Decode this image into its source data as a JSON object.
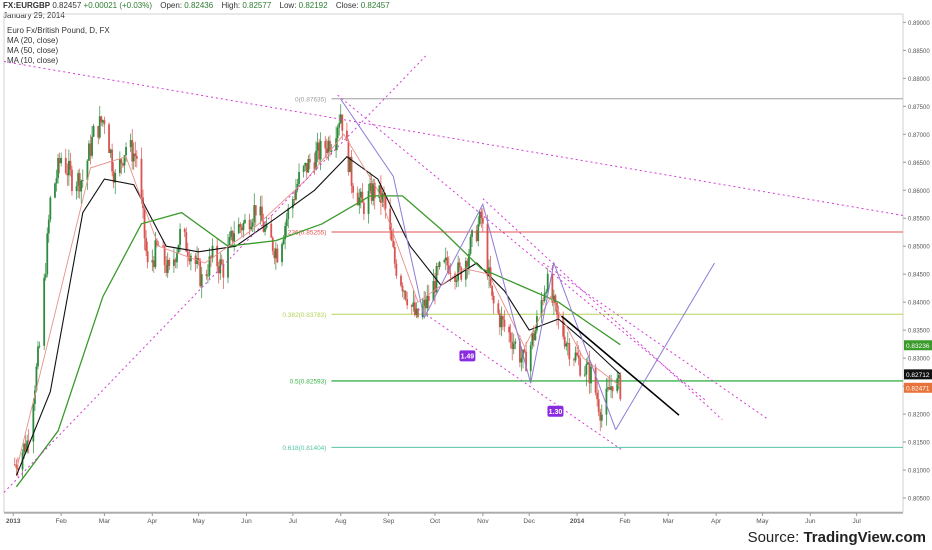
{
  "header": {
    "symbol": "FX:EURGBP",
    "last": "0.82457",
    "change": "+0.00021 (+0.03%)",
    "open_label": "Open:",
    "open": "0.82436",
    "high_label": "High:",
    "high": "0.82577",
    "low_label": "Low:",
    "low": "0.82192",
    "close_label": "Close:",
    "close": "0.82457",
    "date": "January 29, 2014"
  },
  "legend": {
    "title": "Euro Fx/British Pound, D, FX",
    "ma20": "MA (20, close)",
    "ma50": "MA (50, close)",
    "ma10": "MA (10, close)"
  },
  "source": {
    "prefix": "Source:",
    "brand": "TradingView.com"
  },
  "colors": {
    "up": "#2e8b3e",
    "down": "#d9534f",
    "trendline": "#d63ad6",
    "ma20": "#111111",
    "ma50": "#3a9a2a",
    "ma10": "#e8908a",
    "fib_0": "#9e9e9e",
    "fib_236": "#e05050",
    "fib_382": "#b5d35a",
    "fib_5": "#3cb44b",
    "fib_618": "#56c3a7"
  },
  "chart_data": {
    "type": "candlestick",
    "x_tick_labels": [
      "2013",
      "Feb",
      "Mar",
      "Apr",
      "May",
      "Jun",
      "Jul",
      "Aug",
      "Sep",
      "Oct",
      "Nov",
      "Dec",
      "2014",
      "Feb",
      "Mar",
      "Apr",
      "May",
      "Jun",
      "Jul"
    ],
    "ylim": [
      0.8025,
      0.8915
    ],
    "y_ticks": [
      "0.89000",
      "0.88500",
      "0.88000",
      "0.87500",
      "0.87000",
      "0.86500",
      "0.86000",
      "0.85500",
      "0.85000",
      "0.84500",
      "0.84000",
      "0.83500",
      "0.83000",
      "0.82500",
      "0.82000",
      "0.81500",
      "0.81000",
      "0.80500"
    ],
    "price_badges": [
      {
        "name": "ma50",
        "value": 0.8323,
        "label": "0.83236"
      },
      {
        "name": "ma20",
        "value": 0.8271,
        "label": "0.82712"
      },
      {
        "name": "last",
        "value": 0.8247,
        "label": "0.82471"
      }
    ],
    "fib_levels": [
      {
        "key": "fib_0",
        "label": "0(0.87635)",
        "value": 0.87635
      },
      {
        "key": "fib_236",
        "label": ".236(0.85255)",
        "value": 0.85255
      },
      {
        "key": "fib_382",
        "label": "0.382(0.83783)",
        "value": 0.83783
      },
      {
        "key": "fib_5",
        "label": "0.5(0.82593)",
        "value": 0.82593
      },
      {
        "key": "fib_618",
        "label": "0.618(0.81404)",
        "value": 0.81404
      }
    ],
    "wave_labels": [
      {
        "text": "1.49",
        "x": "2013-10-22",
        "y": 0.8304
      },
      {
        "text": "1.30",
        "x": "2013-12-18",
        "y": 0.8205
      }
    ],
    "price_path": [
      [
        "2013-01-02",
        0.811
      ],
      [
        "2013-01-10",
        0.815
      ],
      [
        "2013-01-18",
        0.832
      ],
      [
        "2013-01-25",
        0.858
      ],
      [
        "2013-02-01",
        0.866
      ],
      [
        "2013-02-08",
        0.862
      ],
      [
        "2013-02-15",
        0.862
      ],
      [
        "2013-02-22",
        0.87
      ],
      [
        "2013-03-01",
        0.873
      ],
      [
        "2013-03-08",
        0.862
      ],
      [
        "2013-03-15",
        0.868
      ],
      [
        "2013-03-22",
        0.866
      ],
      [
        "2013-03-29",
        0.846
      ],
      [
        "2013-04-05",
        0.85
      ],
      [
        "2013-04-12",
        0.845
      ],
      [
        "2013-04-19",
        0.852
      ],
      [
        "2013-04-26",
        0.849
      ],
      [
        "2013-05-03",
        0.844
      ],
      [
        "2013-05-10",
        0.848
      ],
      [
        "2013-05-17",
        0.846
      ],
      [
        "2013-05-24",
        0.853
      ],
      [
        "2013-05-31",
        0.854
      ],
      [
        "2013-06-07",
        0.857
      ],
      [
        "2013-06-14",
        0.852
      ],
      [
        "2013-06-21",
        0.849
      ],
      [
        "2013-06-28",
        0.856
      ],
      [
        "2013-07-05",
        0.862
      ],
      [
        "2013-07-12",
        0.865
      ],
      [
        "2013-07-19",
        0.867
      ],
      [
        "2013-07-26",
        0.869
      ],
      [
        "2013-08-01",
        0.874
      ],
      [
        "2013-08-08",
        0.862
      ],
      [
        "2013-08-15",
        0.857
      ],
      [
        "2013-08-22",
        0.86
      ],
      [
        "2013-08-29",
        0.858
      ],
      [
        "2013-09-05",
        0.847
      ],
      [
        "2013-09-12",
        0.842
      ],
      [
        "2013-09-19",
        0.837
      ],
      [
        "2013-09-26",
        0.84
      ],
      [
        "2013-10-03",
        0.845
      ],
      [
        "2013-10-10",
        0.847
      ],
      [
        "2013-10-17",
        0.845
      ],
      [
        "2013-10-24",
        0.85
      ],
      [
        "2013-10-31",
        0.855
      ],
      [
        "2013-11-07",
        0.84
      ],
      [
        "2013-11-14",
        0.836
      ],
      [
        "2013-11-21",
        0.833
      ],
      [
        "2013-11-28",
        0.829
      ],
      [
        "2013-12-05",
        0.835
      ],
      [
        "2013-12-12",
        0.844
      ],
      [
        "2013-12-19",
        0.837
      ],
      [
        "2013-12-27",
        0.832
      ],
      [
        "2014-01-03",
        0.829
      ],
      [
        "2014-01-10",
        0.827
      ],
      [
        "2014-01-17",
        0.82
      ],
      [
        "2014-01-24",
        0.826
      ],
      [
        "2014-01-29",
        0.8246
      ]
    ],
    "ma_paths": {
      "ma20": [
        [
          "2013-01-03",
          0.809
        ],
        [
          "2013-01-25",
          0.824
        ],
        [
          "2013-02-15",
          0.856
        ],
        [
          "2013-03-01",
          0.862
        ],
        [
          "2013-03-20",
          0.861
        ],
        [
          "2013-04-10",
          0.85
        ],
        [
          "2013-05-01",
          0.849
        ],
        [
          "2013-05-25",
          0.85
        ],
        [
          "2013-06-20",
          0.855
        ],
        [
          "2013-07-15",
          0.86
        ],
        [
          "2013-08-05",
          0.866
        ],
        [
          "2013-08-25",
          0.862
        ],
        [
          "2013-09-15",
          0.85
        ],
        [
          "2013-10-05",
          0.843
        ],
        [
          "2013-10-28",
          0.847
        ],
        [
          "2013-11-15",
          0.842
        ],
        [
          "2013-12-01",
          0.835
        ],
        [
          "2013-12-20",
          0.837
        ],
        [
          "2014-01-10",
          0.832
        ],
        [
          "2014-01-29",
          0.8271
        ]
      ],
      "ma50": [
        [
          "2013-01-03",
          0.807
        ],
        [
          "2013-01-30",
          0.817
        ],
        [
          "2013-02-28",
          0.841
        ],
        [
          "2013-03-25",
          0.854
        ],
        [
          "2013-04-20",
          0.856
        ],
        [
          "2013-05-20",
          0.85
        ],
        [
          "2013-06-20",
          0.851
        ],
        [
          "2013-07-20",
          0.854
        ],
        [
          "2013-08-20",
          0.859
        ],
        [
          "2013-09-10",
          0.859
        ],
        [
          "2013-10-05",
          0.853
        ],
        [
          "2013-10-31",
          0.846
        ],
        [
          "2013-11-25",
          0.843
        ],
        [
          "2013-12-20",
          0.84
        ],
        [
          "2014-01-10",
          0.836
        ],
        [
          "2014-01-29",
          0.8324
        ]
      ],
      "ma10": [
        [
          "2013-01-03",
          0.81
        ],
        [
          "2013-01-28",
          0.838
        ],
        [
          "2013-02-20",
          0.864
        ],
        [
          "2013-03-15",
          0.866
        ],
        [
          "2013-04-05",
          0.85
        ],
        [
          "2013-05-05",
          0.847
        ],
        [
          "2013-06-05",
          0.853
        ],
        [
          "2013-07-10",
          0.862
        ],
        [
          "2013-08-03",
          0.87
        ],
        [
          "2013-08-25",
          0.86
        ],
        [
          "2013-09-20",
          0.84
        ],
        [
          "2013-10-20",
          0.846
        ],
        [
          "2013-11-05",
          0.845
        ],
        [
          "2013-11-28",
          0.832
        ],
        [
          "2013-12-15",
          0.841
        ],
        [
          "2014-01-05",
          0.83
        ],
        [
          "2014-01-29",
          0.825
        ]
      ]
    },
    "drawings": [
      {
        "kind": "trend",
        "color": "trendline",
        "dash": true,
        "from": [
          "2012-12-26",
          0.883
        ],
        "to": [
          "2014-07-31",
          0.8555
        ]
      },
      {
        "kind": "trend",
        "color": "trendline",
        "dash": true,
        "from": [
          "2012-12-26",
          0.806
        ],
        "to": [
          "2013-09-25",
          0.884
        ]
      },
      {
        "kind": "trend",
        "color": "trendline",
        "dash": true,
        "from": [
          "2013-07-30",
          0.877
        ],
        "to": [
          "2014-03-25",
          0.8225
        ]
      },
      {
        "kind": "trend",
        "color": "trendline",
        "dash": true,
        "from": [
          "2013-09-20",
          0.8388
        ],
        "to": [
          "2014-01-30",
          0.8136
        ]
      },
      {
        "kind": "trend",
        "color": "trendline",
        "dash": true,
        "from": [
          "2013-11-01",
          0.8585
        ],
        "to": [
          "2014-04-05",
          0.819
        ]
      },
      {
        "kind": "trend",
        "color": "trendline",
        "dash": true,
        "from": [
          "2013-12-10",
          0.847
        ],
        "to": [
          "2014-05-05",
          0.819
        ]
      },
      {
        "kind": "wave",
        "color": "#8e7ad6",
        "points": [
          [
            "2013-08-01",
            0.8763
          ],
          [
            "2013-09-04",
            0.8625
          ],
          [
            "2013-09-24",
            0.8372
          ],
          [
            "2013-11-01",
            0.8575
          ],
          [
            "2013-12-02",
            0.8255
          ],
          [
            "2013-12-17",
            0.847
          ],
          [
            "2014-01-26",
            0.8172
          ]
        ]
      },
      {
        "kind": "wave",
        "color": "#8e7ad6",
        "points": [
          [
            "2014-01-26",
            0.8172
          ],
          [
            "2014-03-31",
            0.847
          ]
        ]
      },
      {
        "kind": "trend",
        "color": "#000000",
        "dash": false,
        "from": [
          "2013-12-22",
          0.8375
        ],
        "to": [
          "2014-03-08",
          0.8198
        ]
      }
    ]
  }
}
